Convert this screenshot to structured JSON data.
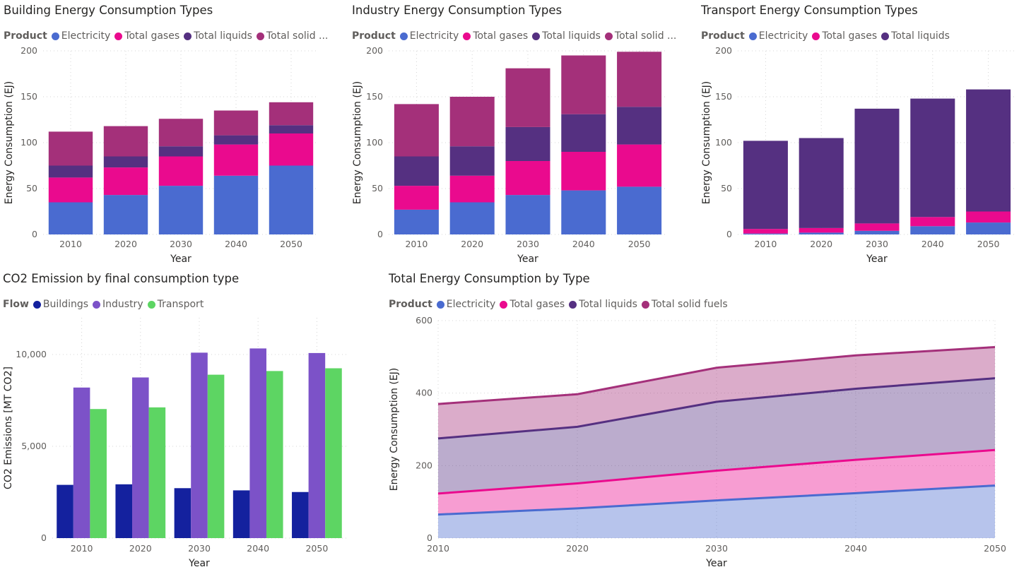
{
  "colors": {
    "electricity": "#4a6bd0",
    "gases": "#ea0a8e",
    "liquids": "#553081",
    "solid": "#a4307a",
    "buildings": "#14219e",
    "industry": "#7c52c8",
    "transport": "#5dd563"
  },
  "chart_data": [
    {
      "id": "building",
      "type": "bar",
      "stacked": true,
      "title": "Building Energy Consumption Types",
      "legend_title": "Product",
      "legend_labels": [
        "Electricity",
        "Total gases",
        "Total liquids",
        "Total solid ..."
      ],
      "xlabel": "Year",
      "ylabel": "Energy Consumption (EJ)",
      "categories": [
        "2010",
        "2020",
        "2030",
        "2040",
        "2050"
      ],
      "ylim": [
        0,
        200
      ],
      "yticks": [
        "0",
        "50",
        "100",
        "150",
        "200"
      ],
      "series": [
        {
          "name": "Electricity",
          "color_key": "electricity",
          "values": [
            35,
            43,
            53,
            64,
            75
          ]
        },
        {
          "name": "Total gases",
          "color_key": "gases",
          "values": [
            27,
            30,
            32,
            34,
            35
          ]
        },
        {
          "name": "Total liquids",
          "color_key": "liquids",
          "values": [
            13,
            12,
            11,
            10,
            9
          ]
        },
        {
          "name": "Total solid fuels",
          "color_key": "solid",
          "values": [
            37,
            33,
            30,
            27,
            25
          ]
        }
      ]
    },
    {
      "id": "industry",
      "type": "bar",
      "stacked": true,
      "title": "Industry Energy Consumption Types",
      "legend_title": "Product",
      "legend_labels": [
        "Electricity",
        "Total gases",
        "Total liquids",
        "Total solid ..."
      ],
      "xlabel": "Year",
      "ylabel": "Energy Consumption (EJ)",
      "categories": [
        "2010",
        "2020",
        "2030",
        "2040",
        "2050"
      ],
      "ylim": [
        0,
        200
      ],
      "yticks": [
        "0",
        "50",
        "100",
        "150",
        "200"
      ],
      "series": [
        {
          "name": "Electricity",
          "color_key": "electricity",
          "values": [
            27,
            35,
            43,
            48,
            52
          ]
        },
        {
          "name": "Total gases",
          "color_key": "gases",
          "values": [
            26,
            29,
            37,
            42,
            46
          ]
        },
        {
          "name": "Total liquids",
          "color_key": "liquids",
          "values": [
            32,
            32,
            37,
            41,
            41
          ]
        },
        {
          "name": "Total solid fuels",
          "color_key": "solid",
          "values": [
            57,
            54,
            64,
            64,
            60
          ]
        }
      ]
    },
    {
      "id": "transport",
      "type": "bar",
      "stacked": true,
      "title": "Transport Energy Consumption Types",
      "legend_title": "Product",
      "legend_labels": [
        "Electricity",
        "Total gases",
        "Total liquids"
      ],
      "xlabel": "Year",
      "ylabel": "Energy Consumption (EJ)",
      "categories": [
        "2010",
        "2020",
        "2030",
        "2040",
        "2050"
      ],
      "ylim": [
        0,
        200
      ],
      "yticks": [
        "0",
        "50",
        "100",
        "150",
        "200"
      ],
      "series": [
        {
          "name": "Electricity",
          "color_key": "electricity",
          "values": [
            1,
            2,
            4,
            9,
            13
          ]
        },
        {
          "name": "Total gases",
          "color_key": "gases",
          "values": [
            5,
            5,
            8,
            10,
            12
          ]
        },
        {
          "name": "Total liquids",
          "color_key": "liquids",
          "values": [
            96,
            98,
            125,
            129,
            133
          ]
        }
      ]
    },
    {
      "id": "co2",
      "type": "bar",
      "stacked": false,
      "title": "CO2 Emission by final consumption type",
      "legend_title": "Flow",
      "legend_labels": [
        "Buildings",
        "Industry",
        "Transport"
      ],
      "xlabel": "Year",
      "ylabel": "CO2 Emissions [MT CO2]",
      "categories": [
        "2010",
        "2020",
        "2030",
        "2040",
        "2050"
      ],
      "ylim": [
        0,
        12000
      ],
      "yticks": [
        "0",
        "5,000",
        "10,000"
      ],
      "yticks_values": [
        0,
        5000,
        10000
      ],
      "series": [
        {
          "name": "Buildings",
          "color_key": "buildings",
          "values": [
            2900,
            2930,
            2720,
            2600,
            2510
          ]
        },
        {
          "name": "Industry",
          "color_key": "industry",
          "values": [
            8200,
            8750,
            10100,
            10330,
            10080
          ]
        },
        {
          "name": "Transport",
          "color_key": "transport",
          "values": [
            7030,
            7120,
            8900,
            9100,
            9250
          ]
        }
      ]
    },
    {
      "id": "total",
      "type": "area",
      "stacked": true,
      "title": "Total Energy Consumption by Type",
      "legend_title": "Product",
      "legend_labels": [
        "Electricity",
        "Total gases",
        "Total liquids",
        "Total solid fuels"
      ],
      "xlabel": "Year",
      "ylabel": "Energy Consumption (EJ)",
      "categories": [
        "2010",
        "2020",
        "2030",
        "2040",
        "2050"
      ],
      "ylim": [
        0,
        600
      ],
      "yticks": [
        "0",
        "200",
        "400",
        "600"
      ],
      "series": [
        {
          "name": "Electricity",
          "color_key": "electricity",
          "values": [
            65,
            82,
            104,
            124,
            145
          ]
        },
        {
          "name": "Total gases",
          "color_key": "gases",
          "values": [
            58,
            69,
            82,
            92,
            98
          ]
        },
        {
          "name": "Total liquids",
          "color_key": "liquids",
          "values": [
            152,
            156,
            190,
            196,
            198
          ]
        },
        {
          "name": "Total solid fuels",
          "color_key": "solid",
          "values": [
            95,
            90,
            94,
            92,
            86
          ]
        }
      ]
    }
  ]
}
